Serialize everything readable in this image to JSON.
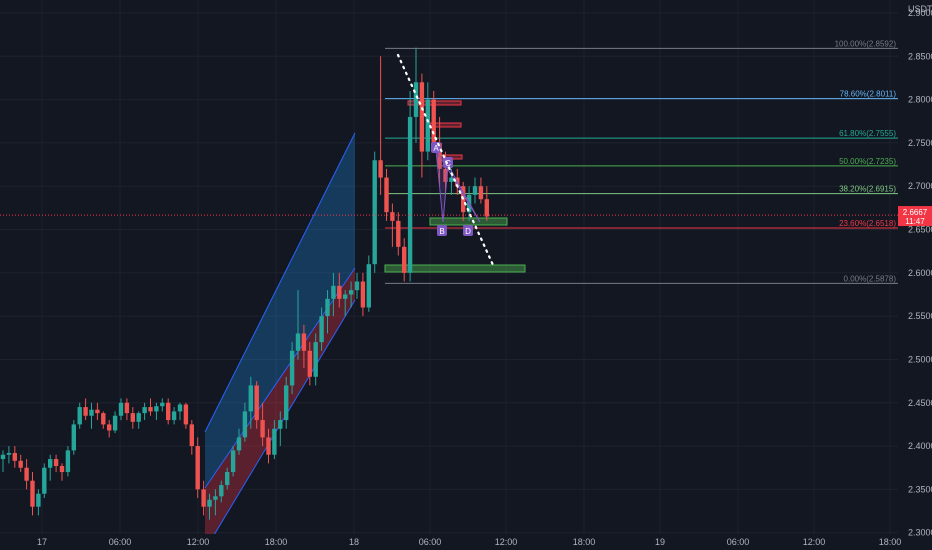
{
  "chart_data": {
    "type": "candlestick",
    "currency": "USDT",
    "price_axis": {
      "ylim": [
        2.28,
        2.915
      ],
      "ticks": [
        "2.9000",
        "2.8500",
        "2.8000",
        "2.7500",
        "2.7000",
        "2.6500",
        "2.6000",
        "2.5500",
        "2.5000",
        "2.4500",
        "2.4000",
        "2.3500",
        "2.3000"
      ]
    },
    "time_axis": {
      "labels": [
        "17",
        "06:00",
        "12:00",
        "18:00",
        "18",
        "06:00",
        "12:00",
        "18:00",
        "19",
        "06:00",
        "12:00",
        "18:00"
      ]
    },
    "current_price": {
      "price": 2.6667,
      "label": "2.6667",
      "countdown": "11:47",
      "color": "#f23645"
    },
    "fibonacci": {
      "levels": [
        {
          "label": "100.00%(2.8592)",
          "price": 2.8592,
          "color": "#787b86"
        },
        {
          "label": "78.60%(2.8011)",
          "price": 2.8011,
          "color": "#64b5f6"
        },
        {
          "label": "61.80%(2.7555)",
          "price": 2.7555,
          "color": "#22ab94"
        },
        {
          "label": "50.00%(2.7235)",
          "price": 2.7235,
          "color": "#4caf50"
        },
        {
          "label": "38.20%(2.6915)",
          "price": 2.6915,
          "color": "#81c784"
        },
        {
          "label": "23.60%(2.6518)",
          "price": 2.6518,
          "color": "#f23645"
        },
        {
          "label": "0.00%(2.5878)",
          "price": 2.5878,
          "color": "#787b86"
        }
      ]
    },
    "pattern_labels": [
      "A",
      "B",
      "C",
      "D"
    ],
    "colors": {
      "up": "#26a69a",
      "down": "#ef5350",
      "background": "#131722",
      "grid": "#1e222d",
      "axis_text": "#b2b5be"
    },
    "candles": [
      [
        2.385,
        2.395,
        2.37,
        2.39
      ],
      [
        2.39,
        2.4,
        2.38,
        2.392
      ],
      [
        2.392,
        2.4,
        2.375,
        2.383
      ],
      [
        2.383,
        2.39,
        2.37,
        2.375
      ],
      [
        2.375,
        2.385,
        2.35,
        2.36
      ],
      [
        2.36,
        2.37,
        2.32,
        2.33
      ],
      [
        2.33,
        2.35,
        2.32,
        2.345
      ],
      [
        2.345,
        2.38,
        2.34,
        2.375
      ],
      [
        2.375,
        2.39,
        2.36,
        2.385
      ],
      [
        2.385,
        2.39,
        2.37,
        2.377
      ],
      [
        2.377,
        2.38,
        2.36,
        2.37
      ],
      [
        2.37,
        2.4,
        2.365,
        2.395
      ],
      [
        2.395,
        2.43,
        2.39,
        2.425
      ],
      [
        2.425,
        2.45,
        2.42,
        2.445
      ],
      [
        2.445,
        2.455,
        2.43,
        2.435
      ],
      [
        2.435,
        2.45,
        2.42,
        2.442
      ],
      [
        2.442,
        2.45,
        2.43,
        2.438
      ],
      [
        2.438,
        2.44,
        2.42,
        2.425
      ],
      [
        2.425,
        2.43,
        2.41,
        2.418
      ],
      [
        2.418,
        2.44,
        2.415,
        2.435
      ],
      [
        2.435,
        2.455,
        2.43,
        2.45
      ],
      [
        2.45,
        2.455,
        2.43,
        2.438
      ],
      [
        2.438,
        2.445,
        2.42,
        2.428
      ],
      [
        2.428,
        2.44,
        2.42,
        2.438
      ],
      [
        2.438,
        2.45,
        2.43,
        2.445
      ],
      [
        2.445,
        2.455,
        2.435,
        2.44
      ],
      [
        2.44,
        2.45,
        2.43,
        2.446
      ],
      [
        2.446,
        2.455,
        2.44,
        2.45
      ],
      [
        2.45,
        2.455,
        2.425,
        2.43
      ],
      [
        2.43,
        2.445,
        2.425,
        2.44
      ],
      [
        2.44,
        2.45,
        2.43,
        2.448
      ],
      [
        2.448,
        2.45,
        2.42,
        2.425
      ],
      [
        2.425,
        2.43,
        2.39,
        2.4
      ],
      [
        2.4,
        2.41,
        2.34,
        2.35
      ],
      [
        2.35,
        2.36,
        2.32,
        2.33
      ],
      [
        2.33,
        2.345,
        2.315,
        2.338
      ],
      [
        2.338,
        2.35,
        2.32,
        2.342
      ],
      [
        2.342,
        2.36,
        2.335,
        2.355
      ],
      [
        2.355,
        2.375,
        2.35,
        2.37
      ],
      [
        2.37,
        2.4,
        2.365,
        2.395
      ],
      [
        2.395,
        2.42,
        2.39,
        2.41
      ],
      [
        2.41,
        2.45,
        2.405,
        2.44
      ],
      [
        2.44,
        2.48,
        2.42,
        2.47
      ],
      [
        2.47,
        2.475,
        2.42,
        2.43
      ],
      [
        2.43,
        2.45,
        2.4,
        2.41
      ],
      [
        2.41,
        2.42,
        2.38,
        2.39
      ],
      [
        2.39,
        2.43,
        2.385,
        2.42
      ],
      [
        2.42,
        2.44,
        2.4,
        2.43
      ],
      [
        2.43,
        2.48,
        2.42,
        2.47
      ],
      [
        2.47,
        2.52,
        2.46,
        2.51
      ],
      [
        2.51,
        2.58,
        2.5,
        2.53
      ],
      [
        2.53,
        2.54,
        2.49,
        2.51
      ],
      [
        2.51,
        2.52,
        2.47,
        2.48
      ],
      [
        2.48,
        2.53,
        2.47,
        2.52
      ],
      [
        2.52,
        2.56,
        2.51,
        2.55
      ],
      [
        2.55,
        2.58,
        2.53,
        2.57
      ],
      [
        2.57,
        2.6,
        2.55,
        2.585
      ],
      [
        2.585,
        2.6,
        2.56,
        2.57
      ],
      [
        2.57,
        2.58,
        2.55,
        2.575
      ],
      [
        2.575,
        2.59,
        2.56,
        2.58
      ],
      [
        2.58,
        2.6,
        2.57,
        2.59
      ],
      [
        2.59,
        2.6,
        2.55,
        2.56
      ],
      [
        2.56,
        2.62,
        2.555,
        2.61
      ],
      [
        2.61,
        2.74,
        2.6,
        2.73
      ],
      [
        2.73,
        2.85,
        2.69,
        2.71
      ],
      [
        2.71,
        2.72,
        2.66,
        2.67
      ],
      [
        2.67,
        2.68,
        2.63,
        2.66
      ],
      [
        2.66,
        2.67,
        2.62,
        2.63
      ],
      [
        2.63,
        2.64,
        2.59,
        2.6
      ],
      [
        2.6,
        2.81,
        2.59,
        2.78
      ],
      [
        2.78,
        2.86,
        2.75,
        2.82
      ],
      [
        2.82,
        2.83,
        2.71,
        2.74
      ],
      [
        2.74,
        2.82,
        2.73,
        2.8
      ],
      [
        2.8,
        2.81,
        2.74,
        2.75
      ],
      [
        2.75,
        2.78,
        2.7,
        2.72
      ],
      [
        2.72,
        2.74,
        2.69,
        2.705
      ],
      [
        2.705,
        2.72,
        2.69,
        2.71
      ],
      [
        2.71,
        2.72,
        2.69,
        2.7
      ],
      [
        2.7,
        2.705,
        2.66,
        2.67
      ],
      [
        2.67,
        2.7,
        2.66,
        2.69
      ],
      [
        2.69,
        2.71,
        2.68,
        2.7
      ],
      [
        2.7,
        2.71,
        2.68,
        2.685
      ],
      [
        2.685,
        2.7,
        2.66,
        2.665
      ]
    ]
  }
}
